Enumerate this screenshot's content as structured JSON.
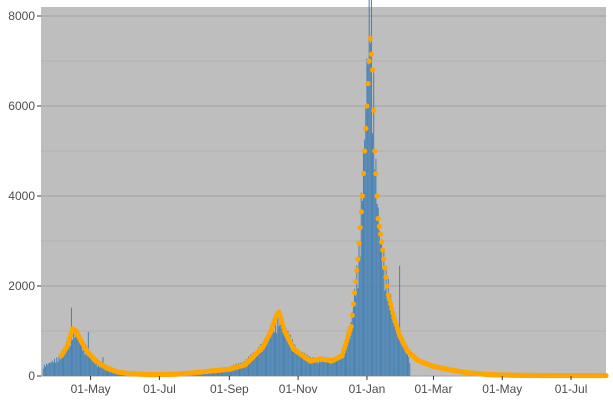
{
  "chart_data": {
    "type": "bar",
    "title": "",
    "xlabel": "",
    "ylabel": "",
    "ylim": [
      0,
      8200
    ],
    "xlim": [
      "2020-03-18",
      "2021-08-01"
    ],
    "grid": true,
    "legend": "none",
    "colors": {
      "panel": "#bebebe",
      "grid": "#a3a3a3",
      "bars": "#4682b4",
      "points": "#ffa500",
      "text": "#4d4d4d"
    },
    "y_ticks": [
      {
        "value": 0,
        "label": "0"
      },
      {
        "value": 2000,
        "label": "2000"
      },
      {
        "value": 4000,
        "label": "4000"
      },
      {
        "value": 6000,
        "label": "6000"
      },
      {
        "value": 8000,
        "label": "8000"
      }
    ],
    "x_ticks": [
      {
        "date": "2020-05-01",
        "label": "01-May"
      },
      {
        "date": "2020-07-01",
        "label": "01-Jul"
      },
      {
        "date": "2020-09-01",
        "label": "01-Sep"
      },
      {
        "date": "2020-11-01",
        "label": "01-Nov"
      },
      {
        "date": "2021-01-01",
        "label": "01-Jan"
      },
      {
        "date": "2021-03-01",
        "label": "01-Mar"
      },
      {
        "date": "2021-05-01",
        "label": "01-May"
      },
      {
        "date": "2021-07-01",
        "label": "01-Jul"
      }
    ],
    "bars": {
      "name": "",
      "x_start": "2020-03-20",
      "x_end": "2021-02-08",
      "knots": [
        [
          "2020-03-20",
          200
        ],
        [
          "2020-03-28",
          300
        ],
        [
          "2020-04-05",
          400
        ],
        [
          "2020-04-10",
          650
        ],
        [
          "2020-04-15",
          900
        ],
        [
          "2020-04-20",
          800
        ],
        [
          "2020-04-25",
          600
        ],
        [
          "2020-05-01",
          350
        ],
        [
          "2020-05-10",
          200
        ],
        [
          "2020-05-25",
          90
        ],
        [
          "2020-06-10",
          40
        ],
        [
          "2020-07-01",
          35
        ],
        [
          "2020-07-20",
          60
        ],
        [
          "2020-08-05",
          100
        ],
        [
          "2020-08-20",
          140
        ],
        [
          "2020-09-01",
          180
        ],
        [
          "2020-09-15",
          300
        ],
        [
          "2020-10-01",
          650
        ],
        [
          "2020-10-10",
          1050
        ],
        [
          "2020-10-15",
          1200
        ],
        [
          "2020-10-22",
          900
        ],
        [
          "2020-11-01",
          500
        ],
        [
          "2020-11-10",
          400
        ],
        [
          "2020-11-20",
          320
        ],
        [
          "2020-12-01",
          320
        ],
        [
          "2020-12-10",
          450
        ],
        [
          "2020-12-18",
          1100
        ],
        [
          "2020-12-25",
          2500
        ],
        [
          "2020-12-30",
          5000
        ],
        [
          "2021-01-02",
          7000
        ],
        [
          "2021-01-04",
          8200
        ],
        [
          "2021-01-06",
          6500
        ],
        [
          "2021-01-09",
          4200
        ],
        [
          "2021-01-12",
          3000
        ],
        [
          "2021-01-17",
          2200
        ],
        [
          "2021-01-23",
          1500
        ],
        [
          "2021-01-29",
          900
        ],
        [
          "2021-02-04",
          600
        ],
        [
          "2021-02-08",
          300
        ]
      ],
      "spikes": [
        [
          "2020-04-14",
          1520
        ],
        [
          "2020-04-29",
          980
        ],
        [
          "2020-05-12",
          420
        ],
        [
          "2021-01-30",
          2450
        ]
      ]
    },
    "points": {
      "name": "",
      "x_start": "2020-04-05",
      "x_end": "2021-08-01",
      "knots": [
        [
          "2020-04-05",
          450
        ],
        [
          "2020-04-10",
          650
        ],
        [
          "2020-04-15",
          1050
        ],
        [
          "2020-04-18",
          1000
        ],
        [
          "2020-04-22",
          800
        ],
        [
          "2020-04-28",
          550
        ],
        [
          "2020-05-05",
          350
        ],
        [
          "2020-05-15",
          180
        ],
        [
          "2020-05-25",
          90
        ],
        [
          "2020-06-05",
          50
        ],
        [
          "2020-06-25",
          30
        ],
        [
          "2020-07-15",
          40
        ],
        [
          "2020-08-01",
          70
        ],
        [
          "2020-08-15",
          110
        ],
        [
          "2020-09-01",
          150
        ],
        [
          "2020-09-15",
          250
        ],
        [
          "2020-10-01",
          650
        ],
        [
          "2020-10-08",
          1000
        ],
        [
          "2020-10-12",
          1300
        ],
        [
          "2020-10-15",
          1420
        ],
        [
          "2020-10-20",
          1000
        ],
        [
          "2020-10-28",
          600
        ],
        [
          "2020-11-05",
          450
        ],
        [
          "2020-11-12",
          330
        ],
        [
          "2020-11-20",
          380
        ],
        [
          "2020-12-01",
          340
        ],
        [
          "2020-12-10",
          450
        ],
        [
          "2020-12-18",
          1100
        ],
        [
          "2020-12-24",
          2600
        ],
        [
          "2020-12-28",
          4000
        ],
        [
          "2021-01-01",
          6000
        ],
        [
          "2021-01-04",
          7500
        ],
        [
          "2021-01-06",
          6800
        ],
        [
          "2021-01-08",
          5000
        ],
        [
          "2021-01-11",
          3500
        ],
        [
          "2021-01-15",
          2800
        ],
        [
          "2021-01-20",
          1800
        ],
        [
          "2021-01-25",
          1300
        ],
        [
          "2021-01-30",
          900
        ],
        [
          "2021-02-06",
          550
        ],
        [
          "2021-02-15",
          350
        ],
        [
          "2021-02-28",
          220
        ],
        [
          "2021-03-15",
          140
        ],
        [
          "2021-04-01",
          70
        ],
        [
          "2021-04-20",
          30
        ],
        [
          "2021-05-15",
          15
        ],
        [
          "2021-06-15",
          10
        ],
        [
          "2021-08-01",
          10
        ]
      ]
    }
  }
}
